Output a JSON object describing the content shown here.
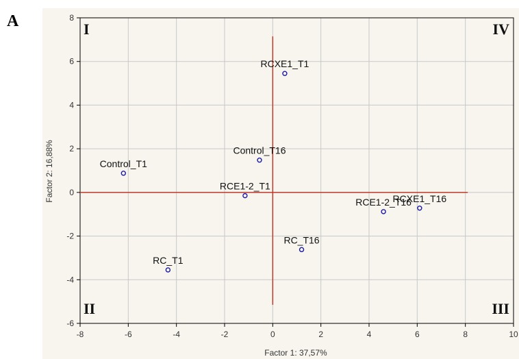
{
  "panel_label": "A",
  "chart_data": {
    "type": "scatter",
    "xlabel": "Factor 1: 37,57%",
    "ylabel": "Factor 2: 16,88%",
    "xlim": [
      -8,
      10
    ],
    "ylim": [
      -6,
      8
    ],
    "xticks": [
      "-8",
      "-6",
      "-4",
      "-2",
      "0",
      "2",
      "4",
      "6",
      "8",
      "10"
    ],
    "yticks": [
      "8",
      "6",
      "4",
      "2",
      "0",
      "-2",
      "-4",
      "-6"
    ],
    "grid": true,
    "quadrants": [
      "I",
      "IV",
      "II",
      "III"
    ],
    "points": [
      {
        "label": "RCXE1_T1",
        "x": 0.5,
        "y": 5.45
      },
      {
        "label": "Control_T16",
        "x": -0.55,
        "y": 1.48
      },
      {
        "label": "Control_T1",
        "x": -6.2,
        "y": 0.88
      },
      {
        "label": "RCE1-2_T1",
        "x": -1.15,
        "y": -0.15
      },
      {
        "label": "RCE1-2_T16",
        "x": 4.6,
        "y": -0.88
      },
      {
        "label": "RCXE1_T16",
        "x": 6.1,
        "y": -0.72
      },
      {
        "label": "RC_T16",
        "x": 1.2,
        "y": -2.62
      },
      {
        "label": "RC_T1",
        "x": -4.35,
        "y": -3.55
      }
    ],
    "axis_lines": {
      "horizontal_y": 0,
      "horizontal_x_end": 8.1,
      "vertical_x": 0,
      "vertical_y_start": -5.15,
      "vertical_y_end": 7.15
    },
    "colors": {
      "marker": "#1a1aa8",
      "axis_lines": "#c0392b",
      "grid": "#c8c8c8"
    }
  }
}
